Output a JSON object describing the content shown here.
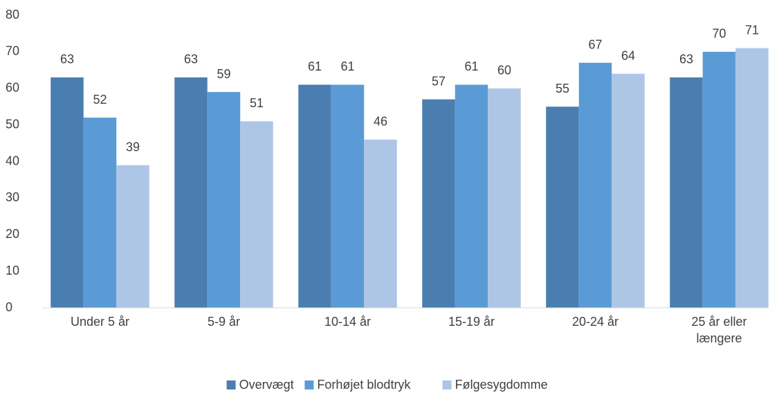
{
  "chart_data": {
    "type": "bar",
    "categories": [
      "Under 5 år",
      "5-9 år",
      "10-14 år",
      "15-19 år",
      "20-24 år",
      "25 år eller længere"
    ],
    "series": [
      {
        "name": "Overvægt",
        "color": "#4a7eb0",
        "values": [
          63,
          63,
          61,
          57,
          55,
          63
        ]
      },
      {
        "name": "Forhøjet blodtryk",
        "color": "#5b9bd5",
        "values": [
          52,
          59,
          61,
          61,
          67,
          70
        ]
      },
      {
        "name": "Følgesygdomme",
        "color": "#adc6e6",
        "values": [
          39,
          51,
          46,
          60,
          64,
          71
        ]
      }
    ],
    "ylim": [
      0,
      80
    ],
    "yticks": [
      0,
      10,
      20,
      30,
      40,
      50,
      60,
      70,
      80
    ],
    "grid": false,
    "legend": "bottom"
  }
}
